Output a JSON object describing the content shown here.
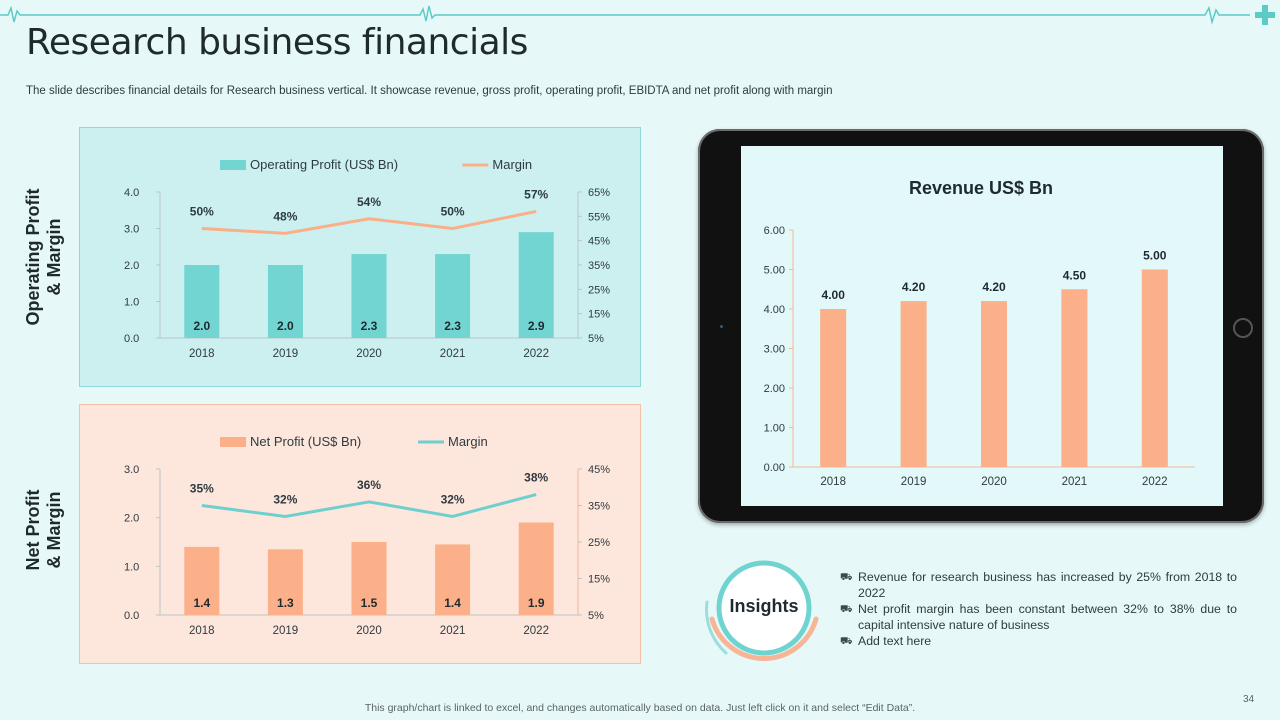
{
  "title": "Research business financials",
  "subtitle": "The slide describes financial details for Research business vertical. It showcase revenue, gross profit, operating profit, EBIDTA and net profit along with margin",
  "panels": {
    "operating_label": "Operating Profit & Margin",
    "operating_label_lines": [
      "Operating Profit",
      "& Margin"
    ],
    "net_label": "Net Profit & Margin",
    "net_label_lines": [
      "Net Profit",
      "& Margin"
    ]
  },
  "insights": {
    "heading": "Insights",
    "bullets": [
      "Revenue for research business has increased by 25% from 2018 to 2022",
      "Net profit margin has been constant between 32% to 38% due to capital intensive nature of business",
      "Add text here"
    ],
    "bullet_icon": "truck-icon"
  },
  "footer": "This graph/chart is linked to excel,  and changes automatically based on data. Just left click on it and select “Edit Data”.",
  "page_number": "34",
  "colors": {
    "teal": "#72d5d2",
    "teal_line": "#6fcfcf",
    "peach": "#fbb089",
    "peach_line": "#f9b088",
    "text": "#1f2a30"
  },
  "chart_data": [
    {
      "type": "bar",
      "categories": [
        "2018",
        "2019",
        "2020",
        "2021",
        "2022"
      ],
      "series": [
        {
          "name": "Operating Profit  (US$ Bn)",
          "kind": "bar",
          "axis": "left",
          "values": [
            2.0,
            2.0,
            2.3,
            2.3,
            2.9
          ],
          "labels": [
            "2.0",
            "2.0",
            "2.3",
            "2.3",
            "2.9"
          ]
        },
        {
          "name": "Margin",
          "kind": "line",
          "axis": "right",
          "values": [
            50,
            48,
            54,
            50,
            57
          ],
          "labels": [
            "50%",
            "48%",
            "54%",
            "50%",
            "57%"
          ]
        }
      ],
      "ylim": [
        0,
        4
      ],
      "yticks": [
        "0.0",
        "1.0",
        "2.0",
        "3.0",
        "4.0"
      ],
      "y2lim": [
        5,
        65
      ],
      "y2ticks": [
        "5%",
        "15%",
        "25%",
        "35%",
        "45%",
        "55%",
        "65%"
      ],
      "legend": "top"
    },
    {
      "type": "bar",
      "categories": [
        "2018",
        "2019",
        "2020",
        "2021",
        "2022"
      ],
      "series": [
        {
          "name": "Net Profit  (US$ Bn)",
          "kind": "bar",
          "axis": "left",
          "values": [
            1.4,
            1.35,
            1.5,
            1.45,
            1.9
          ],
          "labels": [
            "1.4",
            "1.3",
            "1.5",
            "1.4",
            "1.9"
          ]
        },
        {
          "name": "Margin",
          "kind": "line",
          "axis": "right",
          "values": [
            35,
            32,
            36,
            32,
            38
          ],
          "labels": [
            "35%",
            "32%",
            "36%",
            "32%",
            "38%"
          ]
        }
      ],
      "ylim": [
        0,
        3
      ],
      "yticks": [
        "0.0",
        "1.0",
        "2.0",
        "3.0"
      ],
      "y2lim": [
        5,
        45
      ],
      "y2ticks": [
        "5%",
        "15%",
        "25%",
        "35%",
        "45%"
      ],
      "legend": "top"
    },
    {
      "type": "bar",
      "title": "Revenue US$ Bn",
      "categories": [
        "2018",
        "2019",
        "2020",
        "2021",
        "2022"
      ],
      "values": [
        4.0,
        4.2,
        4.2,
        4.5,
        5.0
      ],
      "labels": [
        "4.00",
        "4.20",
        "4.20",
        "4.50",
        "5.00"
      ],
      "ylim": [
        0,
        6
      ],
      "yticks": [
        "0.00",
        "1.00",
        "2.00",
        "3.00",
        "4.00",
        "5.00",
        "6.00"
      ]
    }
  ]
}
